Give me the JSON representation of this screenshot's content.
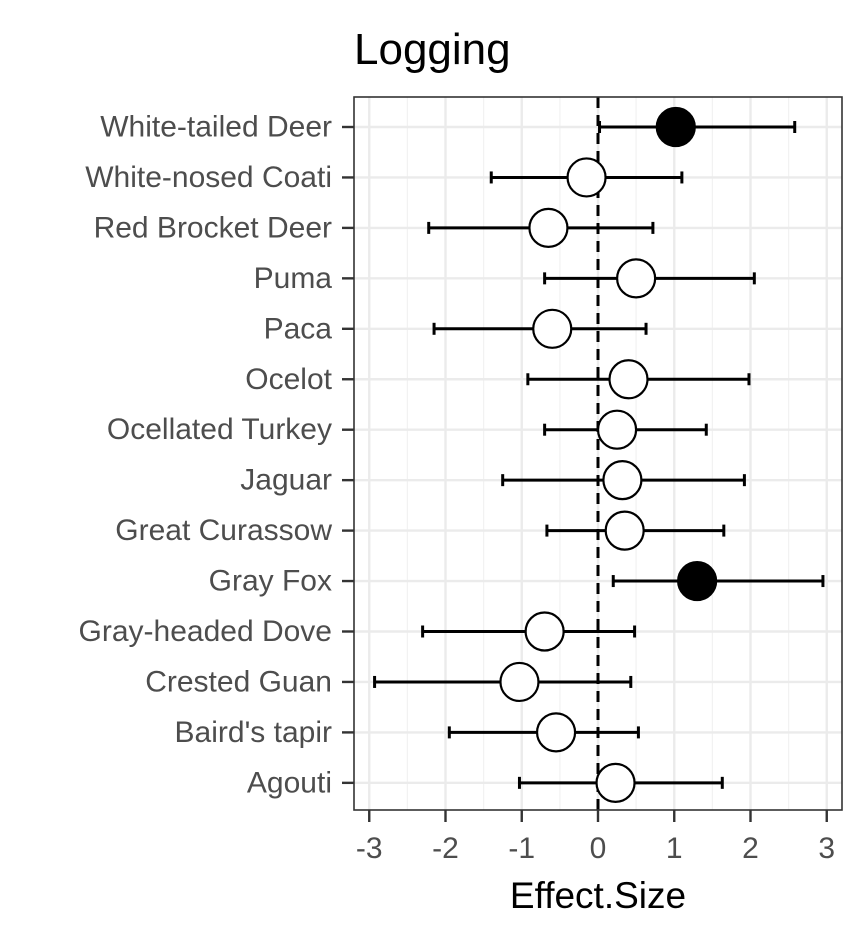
{
  "chart_data": {
    "type": "scatter",
    "subtype": "forest-plot",
    "title": "Logging",
    "xlabel": "Effect.Size",
    "ylabel": "",
    "xlim": [
      -3.2,
      3.2
    ],
    "xticks": [
      -3,
      -2,
      -1,
      0,
      1,
      2,
      3
    ],
    "reference_line": 0,
    "grid": true,
    "species": [
      {
        "name": "White-tailed Deer",
        "estimate": 1.02,
        "lower": 0.02,
        "upper": 2.58,
        "filled": true
      },
      {
        "name": "White-nosed Coati",
        "estimate": -0.15,
        "lower": -1.4,
        "upper": 1.1,
        "filled": false
      },
      {
        "name": "Red Brocket Deer",
        "estimate": -0.65,
        "lower": -2.22,
        "upper": 0.72,
        "filled": false
      },
      {
        "name": "Puma",
        "estimate": 0.5,
        "lower": -0.7,
        "upper": 2.05,
        "filled": false
      },
      {
        "name": "Paca",
        "estimate": -0.6,
        "lower": -2.15,
        "upper": 0.63,
        "filled": false
      },
      {
        "name": "Ocelot",
        "estimate": 0.4,
        "lower": -0.92,
        "upper": 1.98,
        "filled": false
      },
      {
        "name": "Ocellated Turkey",
        "estimate": 0.25,
        "lower": -0.7,
        "upper": 1.42,
        "filled": false
      },
      {
        "name": "Jaguar",
        "estimate": 0.32,
        "lower": -1.25,
        "upper": 1.92,
        "filled": false
      },
      {
        "name": "Great Curassow",
        "estimate": 0.35,
        "lower": -0.67,
        "upper": 1.65,
        "filled": false
      },
      {
        "name": "Gray Fox",
        "estimate": 1.3,
        "lower": 0.2,
        "upper": 2.95,
        "filled": true
      },
      {
        "name": "Gray-headed Dove",
        "estimate": -0.7,
        "lower": -2.3,
        "upper": 0.48,
        "filled": false
      },
      {
        "name": "Crested Guan",
        "estimate": -1.03,
        "lower": -2.93,
        "upper": 0.43,
        "filled": false
      },
      {
        "name": "Baird's tapir",
        "estimate": -0.55,
        "lower": -1.95,
        "upper": 0.53,
        "filled": false
      },
      {
        "name": "Agouti",
        "estimate": 0.23,
        "lower": -1.03,
        "upper": 1.63,
        "filled": false
      }
    ]
  }
}
